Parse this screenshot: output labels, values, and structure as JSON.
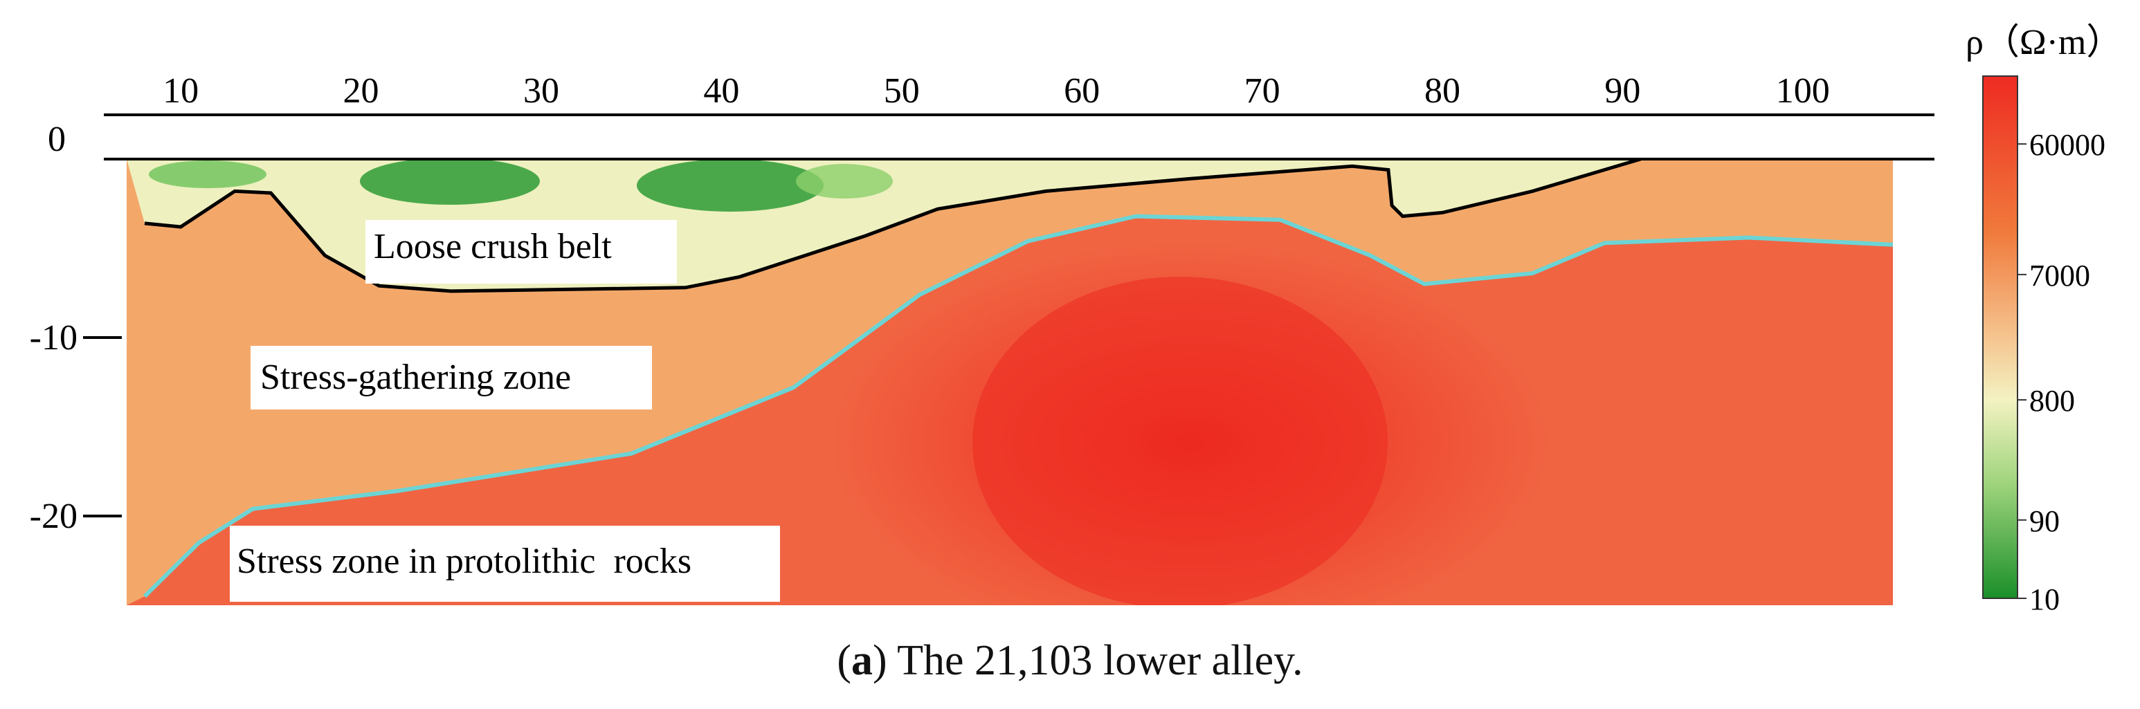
{
  "chart_data": {
    "type": "heatmap",
    "title": "",
    "xlabel": "",
    "ylabel": "",
    "xlim": [
      7,
      105
    ],
    "ylim": [
      -25,
      0
    ],
    "x_ticks": [
      10,
      20,
      30,
      40,
      50,
      60,
      70,
      80,
      90,
      100
    ],
    "y_ticks": [
      0,
      -10,
      -20
    ],
    "colorbar": {
      "unit_label": "ρ（Ω·m）",
      "tick_labels": [
        "60000",
        "7000",
        "800",
        "90",
        "10"
      ],
      "tick_values": [
        60000,
        7000,
        800,
        90,
        10
      ],
      "color_low": "#1a8f2a",
      "color_mid": "#f1f0b8",
      "color_high": "#ee2b22"
    },
    "zones": [
      {
        "label": "Loose crush belt",
        "resistivity_class": "low"
      },
      {
        "label": "Stress-gathering zone",
        "resistivity_class": "medium"
      },
      {
        "label": "Stress zone in protolithic  rocks",
        "resistivity_class": "high"
      }
    ],
    "boundaries": [
      {
        "name": "loose-zone-boundary",
        "color": "#000000",
        "points": [
          [
            8,
            -3.6
          ],
          [
            10,
            -3.8
          ],
          [
            13,
            -1.8
          ],
          [
            15,
            -1.9
          ],
          [
            18,
            -5.4
          ],
          [
            21,
            -7.1
          ],
          [
            25,
            -7.4
          ],
          [
            38,
            -7.2
          ],
          [
            41,
            -6.6
          ],
          [
            48,
            -4.3
          ],
          [
            52,
            -2.8
          ],
          [
            58,
            -1.8
          ],
          [
            66,
            -1.1
          ],
          [
            75,
            -0.4
          ],
          [
            77,
            -0.6
          ],
          [
            77.2,
            -2.6
          ],
          [
            77.8,
            -3.2
          ],
          [
            80,
            -3.0
          ],
          [
            85,
            -1.8
          ],
          [
            91,
            0
          ]
        ]
      },
      {
        "name": "stress-zone-boundary",
        "color": "#6cd4d4",
        "points": [
          [
            8,
            -24.5
          ],
          [
            11,
            -21.5
          ],
          [
            14,
            -19.6
          ],
          [
            22,
            -18.6
          ],
          [
            35,
            -16.5
          ],
          [
            44,
            -12.8
          ],
          [
            51,
            -7.6
          ],
          [
            57,
            -4.6
          ],
          [
            63,
            -3.2
          ],
          [
            71,
            -3.4
          ],
          [
            76,
            -5.4
          ],
          [
            79,
            -7.0
          ],
          [
            85,
            -6.4
          ],
          [
            89,
            -4.7
          ],
          [
            97,
            -4.4
          ],
          [
            105,
            -4.8
          ]
        ]
      }
    ]
  },
  "caption": {
    "panel_letter": "a",
    "text": ") The 21,103 lower alley."
  }
}
